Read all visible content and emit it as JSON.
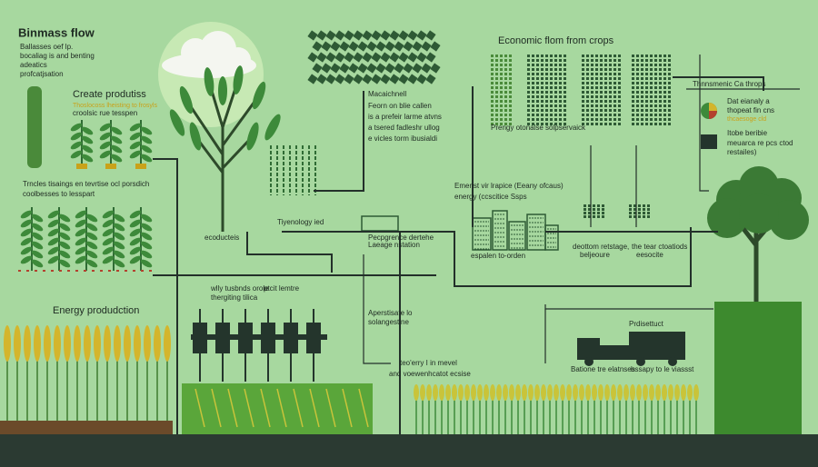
{
  "header": {
    "title": "Binmass flow",
    "lines": [
      "Ballasses oef lp.",
      "bocaliag is and benting",
      "adeatics",
      "profcatjsation"
    ]
  },
  "create": {
    "title": "Create produtiss",
    "lines": [
      "Thoslocoss lheisting to frosyls",
      "croolsic rue tesspen"
    ]
  },
  "trncles": {
    "lines": [
      "Trncles tisaings en tevrtise ocl porsdich",
      "coolbesses to lesspart"
    ]
  },
  "energy": {
    "title": "Energy produdction"
  },
  "macaichnell": {
    "lines": [
      "Macaichnell",
      "Feorn on blie callen",
      "is a prefeir larme atvns",
      "a tsered fadleshr ullog",
      "e vicles torm ibusialdi"
    ]
  },
  "economic": {
    "title": "Economic flom from crops",
    "subtitle": "Prengy otonalse solpservaick"
  },
  "tiyenology": "Tiyenology ied",
  "ecoducteis": "ecoducteis",
  "pecpgrence": {
    "lines": [
      "Pecpgrence dertehe",
      "Laeage nstation"
    ]
  },
  "emenst": {
    "lines": [
      "Emenst vir lrapice (Eeany ofcaus)",
      "energy (ccscitice Ssps"
    ]
  },
  "espalen": "espalen to-orden",
  "deottom": {
    "lines": [
      "deottom retstage,",
      "beljeoure"
    ]
  },
  "tear": {
    "lines": [
      "the tear ctoatiods",
      "eesocite"
    ]
  },
  "legend": {
    "title": "Thnnsmenic Ca throps",
    "pie": [
      "Dat eianaly a",
      "thopeat fin cns",
      "thcaesoge cld"
    ],
    "box": [
      "Itobe beribie",
      "meuarca re pcs ctod",
      "restailes)"
    ]
  },
  "wlly": {
    "lines": [
      "wlly tusbnds orole",
      "thergiting tilica"
    ],
    "side": "ptcit lemtre"
  },
  "aperstisate": {
    "lines": [
      "Aperstisate lo",
      "solangestine"
    ]
  },
  "prdisettuct": "Prdisettuct",
  "truck": {
    "left": "Batione tre elatnses",
    "right": "bssapy to le viassst"
  },
  "teo": {
    "lines": [
      "teo'erry I in mevel",
      "and voewenhcatot ecsise"
    ]
  }
}
